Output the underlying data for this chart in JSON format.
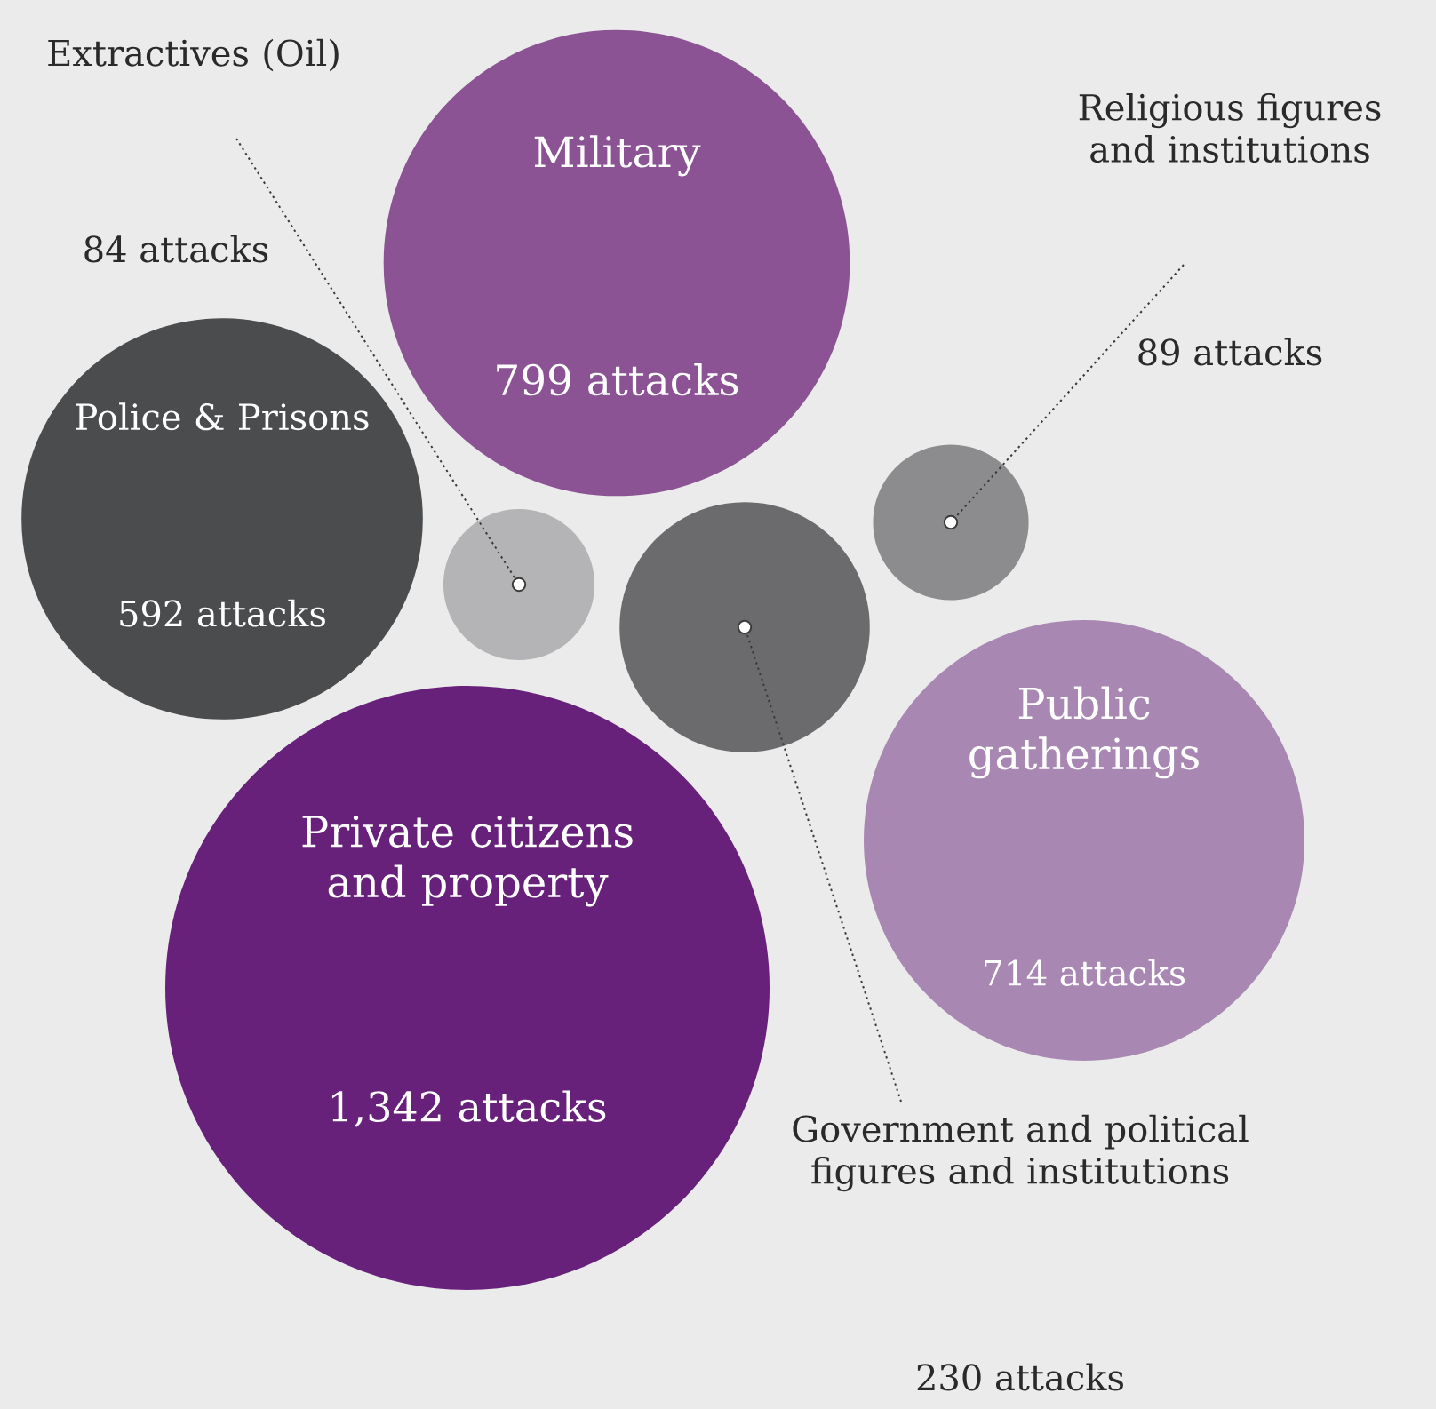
{
  "chart_data": {
    "type": "other",
    "categories": [
      "Extractives (Oil)",
      "Military",
      "Religious figures and institutions",
      "Police & Prisons",
      "Public gatherings",
      "Private citizens and property",
      "Government and political figures and institutions"
    ],
    "values": [
      84,
      799,
      89,
      592,
      714,
      1342,
      230
    ],
    "value_labels": [
      "84 attacks",
      "799 attacks",
      "89 attacks",
      "592 attacks",
      "714 attacks",
      "1,342 attacks",
      "230 attacks"
    ],
    "colors": [
      "#b4b4b6",
      "#8b5394",
      "#8c8c8e",
      "#4b4c4e",
      "#a887b3",
      "#68217a",
      "#6b6b6d"
    ]
  }
}
